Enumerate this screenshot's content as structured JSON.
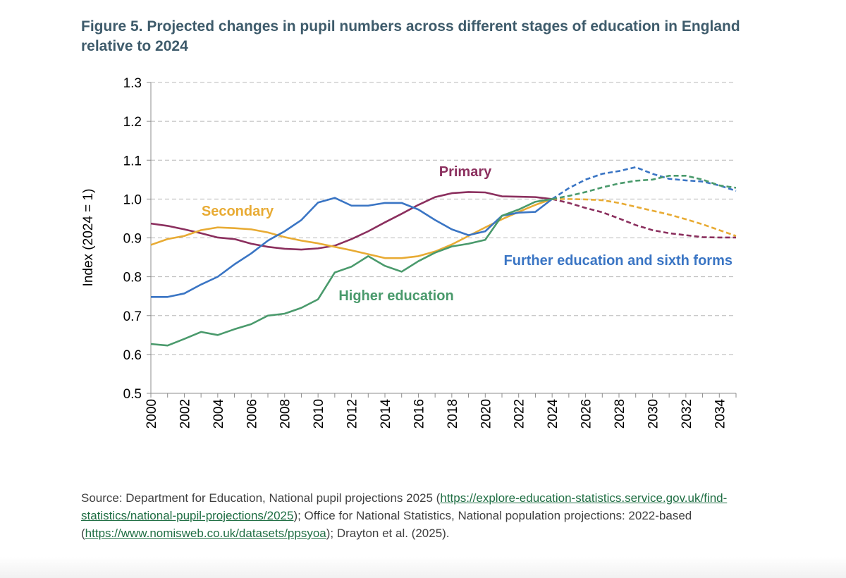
{
  "title": "Figure 5. Projected changes in pupil numbers across different stages of education in England relative to 2024",
  "source": {
    "part1": "Source: Department for Education, National pupil projections 2025 (",
    "link1": "https://explore-education-statistics.service.gov.uk/find-statistics/national-pupil-projections/2025",
    "part2": "); Office for National Statistics, National population projections: 2022-based (",
    "link2": "https://www.nomisweb.co.uk/datasets/ppsyoa",
    "part3": "); Drayton et al. (2025)."
  },
  "chart_data": {
    "type": "line",
    "title": "",
    "xlabel": "",
    "ylabel": "Index (2024 = 1)",
    "xlim": [
      2000,
      2035
    ],
    "ylim": [
      0.5,
      1.3
    ],
    "yticks": [
      "0.5",
      "0.6",
      "0.7",
      "0.8",
      "0.9",
      "1.0",
      "1.1",
      "1.2",
      "1.3"
    ],
    "xticks": [
      "2000",
      "2002",
      "2004",
      "2006",
      "2008",
      "2010",
      "2012",
      "2014",
      "2016",
      "2018",
      "2020",
      "2022",
      "2024",
      "2026",
      "2028",
      "2030",
      "2032",
      "2034"
    ],
    "grid": "horizontal dashed",
    "projection_start": 2024,
    "x": [
      2000,
      2001,
      2002,
      2003,
      2004,
      2005,
      2006,
      2007,
      2008,
      2009,
      2010,
      2011,
      2012,
      2013,
      2014,
      2015,
      2016,
      2017,
      2018,
      2019,
      2020,
      2021,
      2022,
      2023,
      2024,
      2025,
      2026,
      2027,
      2028,
      2029,
      2030,
      2031,
      2032,
      2033,
      2034,
      2035
    ],
    "series": [
      {
        "name": "Primary",
        "color": "#8b2f5e",
        "values": [
          0.937,
          0.931,
          0.922,
          0.912,
          0.901,
          0.897,
          0.885,
          0.877,
          0.872,
          0.87,
          0.873,
          0.88,
          0.897,
          0.917,
          0.94,
          0.962,
          0.985,
          1.005,
          1.015,
          1.018,
          1.017,
          1.007,
          1.006,
          1.005,
          1.0,
          0.99,
          0.977,
          0.966,
          0.95,
          0.933,
          0.92,
          0.912,
          0.907,
          0.902,
          0.901,
          0.901
        ]
      },
      {
        "name": "Secondary",
        "color": "#e8ab34",
        "values": [
          0.882,
          0.897,
          0.905,
          0.92,
          0.927,
          0.925,
          0.922,
          0.914,
          0.902,
          0.893,
          0.886,
          0.877,
          0.868,
          0.858,
          0.848,
          0.848,
          0.853,
          0.865,
          0.883,
          0.905,
          0.927,
          0.948,
          0.967,
          0.985,
          1.0,
          1.0,
          0.999,
          0.997,
          0.99,
          0.98,
          0.97,
          0.96,
          0.948,
          0.935,
          0.92,
          0.905
        ]
      },
      {
        "name": "Further education and sixth forms",
        "color": "#3a75c4",
        "values": [
          0.748,
          0.748,
          0.757,
          0.78,
          0.8,
          0.832,
          0.86,
          0.893,
          0.917,
          0.946,
          0.991,
          1.003,
          0.983,
          0.983,
          0.99,
          0.99,
          0.973,
          0.946,
          0.922,
          0.907,
          0.917,
          0.957,
          0.965,
          0.967,
          1.0,
          1.028,
          1.05,
          1.065,
          1.072,
          1.082,
          1.065,
          1.052,
          1.048,
          1.045,
          1.035,
          1.021
        ]
      },
      {
        "name": "Higher education",
        "color": "#4a9a6c",
        "values": [
          0.627,
          0.623,
          0.64,
          0.658,
          0.65,
          0.665,
          0.678,
          0.7,
          0.705,
          0.72,
          0.742,
          0.811,
          0.826,
          0.853,
          0.828,
          0.813,
          0.84,
          0.862,
          0.878,
          0.885,
          0.895,
          0.957,
          0.973,
          0.993,
          1.0,
          1.008,
          1.018,
          1.03,
          1.04,
          1.047,
          1.05,
          1.06,
          1.06,
          1.05,
          1.035,
          1.029
        ]
      }
    ],
    "annotations": [
      {
        "text": "Primary",
        "series": 0,
        "color": "#8b2f5e"
      },
      {
        "text": "Secondary",
        "series": 1,
        "color": "#e8ab34"
      },
      {
        "text": "Further education and sixth forms",
        "series": 2,
        "color": "#3a75c4"
      },
      {
        "text": "Higher education",
        "series": 3,
        "color": "#4a9a6c"
      }
    ]
  }
}
